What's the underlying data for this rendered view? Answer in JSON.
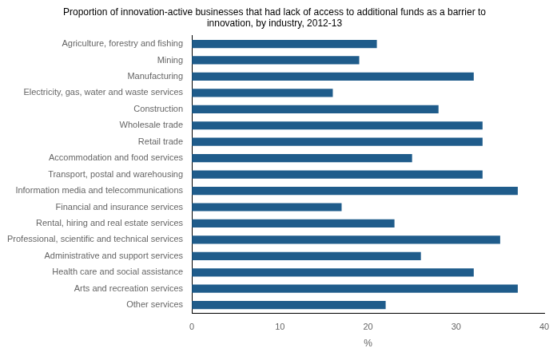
{
  "chart_data": {
    "type": "bar",
    "orientation": "horizontal",
    "title": "Proportion of innovation-active businesses that had lack of access to additional funds as a barrier to\ninnovation, by industry, 2012-13",
    "xlabel": "%",
    "categories": [
      "Other services",
      "Arts and recreation services",
      "Health care and social assistance",
      "Administrative and support services",
      "Professional, scientific and technical services",
      "Rental, hiring and real estate services",
      "Financial and insurance services",
      "Information media and telecommunications",
      "Transport, postal and warehousing",
      "Accommodation and food services",
      "Retail trade",
      "Wholesale trade",
      "Construction",
      "Electricity, gas, water and waste services",
      "Manufacturing",
      "Mining",
      "Agriculture, forestry and fishing"
    ],
    "values": [
      22,
      37,
      32,
      26,
      35,
      23,
      17,
      37,
      33,
      25,
      33,
      33,
      28,
      16,
      32,
      19,
      21
    ],
    "color": "#1F5C8B",
    "xlim": [
      0,
      40
    ],
    "xticks": [
      0,
      10,
      20,
      30,
      40
    ],
    "grid": false
  }
}
